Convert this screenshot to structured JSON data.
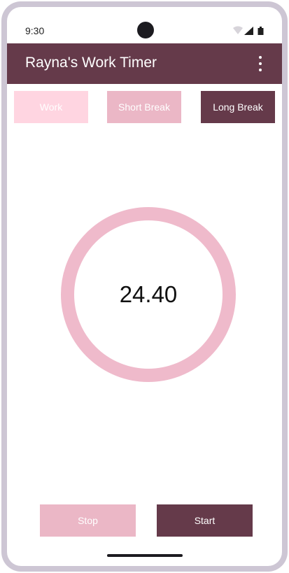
{
  "status_bar": {
    "time": "9:30",
    "icons": [
      "wifi-icon",
      "signal-icon",
      "battery-icon"
    ]
  },
  "app_bar": {
    "title": "Rayna's Work Timer",
    "menu_icon": "more-vert-icon"
  },
  "modes": {
    "work_label": "Work",
    "short_break_label": "Short Break",
    "long_break_label": "Long Break"
  },
  "timer": {
    "value": "24.40"
  },
  "actions": {
    "stop_label": "Stop",
    "start_label": "Start"
  },
  "colors": {
    "primary": "#653a4a",
    "accent_light": "#ffd5e1",
    "accent_mid": "#ebb7c6",
    "ring": "#efbacb",
    "frame": "#cdc6d4"
  }
}
